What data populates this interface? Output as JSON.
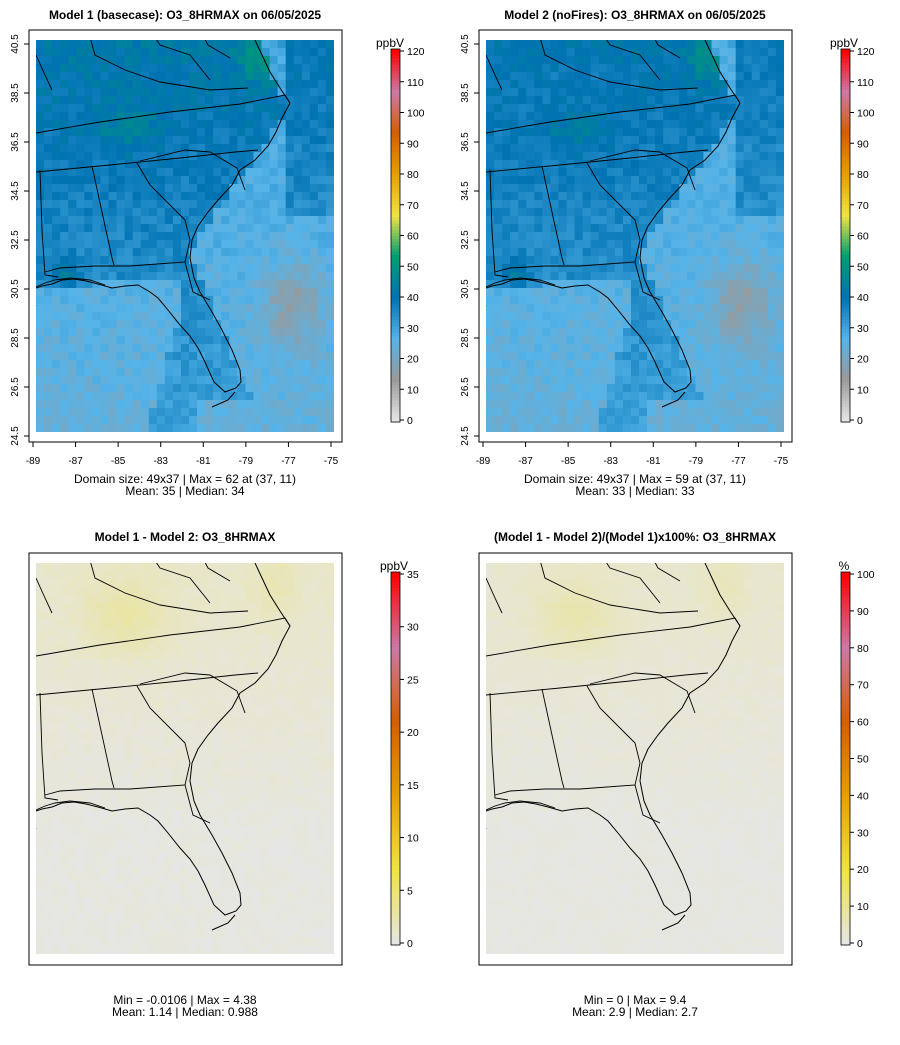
{
  "chart_data": [
    {
      "type": "heatmap",
      "title": "Model 1 (basecase): O3_8HRMAX on 06/05/2025",
      "variable": "O3_8HRMAX",
      "xticks": [
        "-89",
        "-87",
        "-85",
        "-83",
        "-81",
        "-79",
        "-77",
        "-75"
      ],
      "yticks": [
        "24.5",
        "26.5",
        "28.5",
        "30.5",
        "32.5",
        "34.5",
        "36.5",
        "38.5",
        "40.5"
      ],
      "xlim": [
        -89,
        -75
      ],
      "ylim": [
        24.5,
        40.5
      ],
      "colorbar": {
        "unit": "ppbV",
        "range": [
          0,
          120
        ],
        "ticks": [
          "0",
          "10",
          "20",
          "30",
          "40",
          "50",
          "60",
          "70",
          "80",
          "90",
          "100",
          "110",
          "120"
        ],
        "colors": [
          "#e6e6e6",
          "#9a9a9a",
          "#56b4e9",
          "#0072b2",
          "#009e73",
          "#f0e442",
          "#e69f00",
          "#d55e00",
          "#cc79a7",
          "#ff0000"
        ]
      },
      "domain_size": "49x37",
      "max_value": 62,
      "max_location": "(37, 11)",
      "mean": 35,
      "median": 34,
      "stats_line1": "Domain size: 49x37 | Max = 62 at (37, 11)",
      "stats_line2": "Mean: 35 |  Median: 34"
    },
    {
      "type": "heatmap",
      "title": "Model 2 (noFires): O3_8HRMAX on 06/05/2025",
      "variable": "O3_8HRMAX",
      "xticks": [
        "-89",
        "-87",
        "-85",
        "-83",
        "-81",
        "-79",
        "-77",
        "-75"
      ],
      "yticks": [
        "24.5",
        "26.5",
        "28.5",
        "30.5",
        "32.5",
        "34.5",
        "36.5",
        "38.5",
        "40.5"
      ],
      "xlim": [
        -89,
        -75
      ],
      "ylim": [
        24.5,
        40.5
      ],
      "colorbar": {
        "unit": "ppbV",
        "range": [
          0,
          120
        ],
        "ticks": [
          "0",
          "10",
          "20",
          "30",
          "40",
          "50",
          "60",
          "70",
          "80",
          "90",
          "100",
          "110",
          "120"
        ],
        "colors": [
          "#e6e6e6",
          "#9a9a9a",
          "#56b4e9",
          "#0072b2",
          "#009e73",
          "#f0e442",
          "#e69f00",
          "#d55e00",
          "#cc79a7",
          "#ff0000"
        ]
      },
      "domain_size": "49x37",
      "max_value": 59,
      "max_location": "(37, 11)",
      "mean": 33,
      "median": 33,
      "stats_line1": "Domain size: 49x37 | Max = 59 at (37, 11)",
      "stats_line2": "Mean: 33 |  Median: 33"
    },
    {
      "type": "heatmap",
      "title": "Model 1 - Model 2: O3_8HRMAX",
      "variable": "O3_8HRMAX",
      "colorbar": {
        "unit": "ppbV",
        "range": [
          0,
          35
        ],
        "ticks": [
          "0",
          "5",
          "10",
          "15",
          "20",
          "25",
          "30",
          "35"
        ],
        "colors": [
          "#e6e6e6",
          "#f0e442",
          "#e69f00",
          "#d55e00",
          "#cc79a7",
          "#ff0000"
        ]
      },
      "min_value": -0.0106,
      "max_value": 4.38,
      "mean": 1.14,
      "median": 0.988,
      "stats_line1": "Min = -0.0106 | Max = 4.38",
      "stats_line2": "Mean: 1.14 |  Median: 0.988"
    },
    {
      "type": "heatmap",
      "title": "(Model 1 - Model 2)/(Model 1)x100%: O3_8HRMAX",
      "variable": "O3_8HRMAX",
      "colorbar": {
        "unit": "%",
        "range": [
          0,
          100
        ],
        "ticks": [
          "0",
          "10",
          "20",
          "30",
          "40",
          "50",
          "60",
          "70",
          "80",
          "90",
          "100"
        ],
        "colors": [
          "#e6e6e6",
          "#f0e442",
          "#e69f00",
          "#d55e00",
          "#cc79a7",
          "#ff0000"
        ]
      },
      "min_value": 0,
      "max_value": 9.4,
      "mean": 2.9,
      "median": 2.7,
      "stats_line1": "Min = 0 | Max = 9.4",
      "stats_line2": "Mean: 2.9 |  Median: 2.7"
    }
  ]
}
